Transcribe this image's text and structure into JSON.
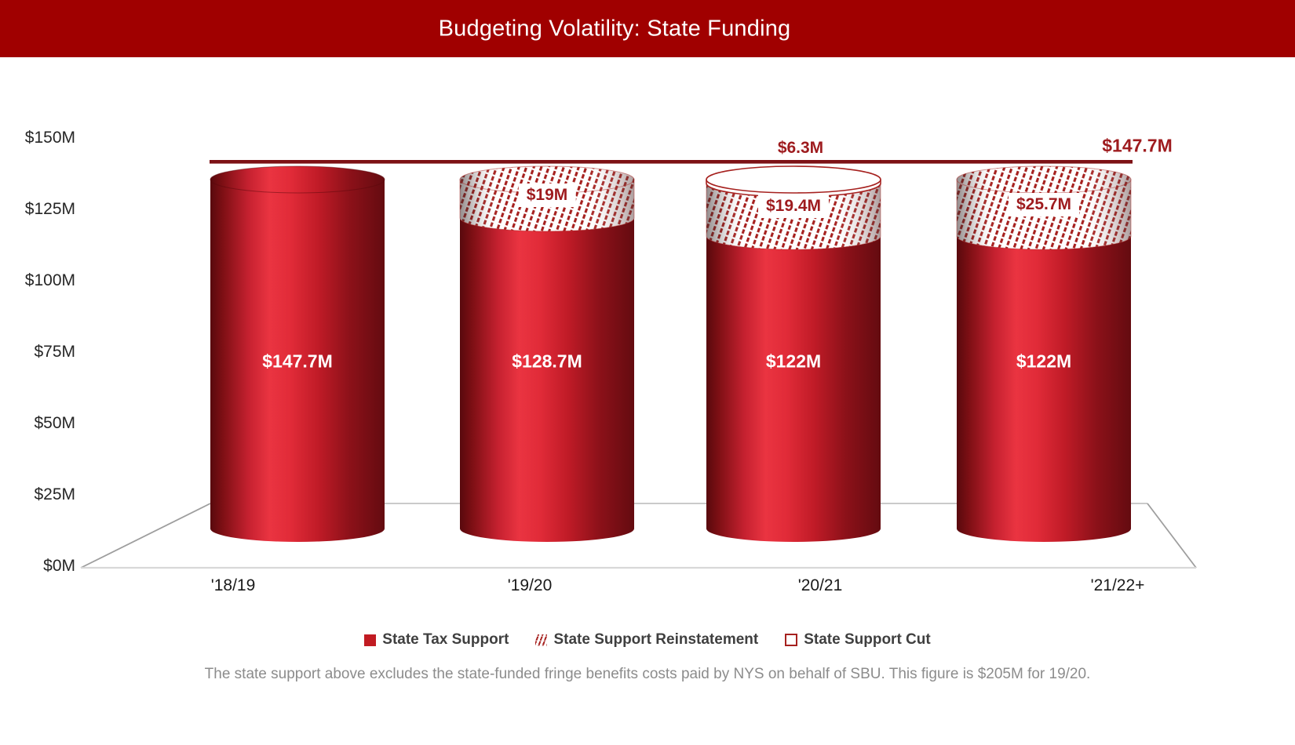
{
  "header": {
    "title": "Budgeting Volatility: State Funding"
  },
  "chart_data": {
    "type": "bar",
    "variant": "3d-cylinder-stacked",
    "title": "Budgeting Volatility: State Funding",
    "categories": [
      "'18/19",
      "'19/20",
      "'20/21",
      "'21/22+"
    ],
    "series": [
      {
        "name": "State Tax Support",
        "style": "solid",
        "values": [
          147.7,
          128.7,
          122,
          122
        ],
        "labels": [
          "$147.7M",
          "$128.7M",
          "$122M",
          "$122M"
        ]
      },
      {
        "name": "State Support Reinstatement",
        "style": "hatch",
        "values": [
          0,
          19,
          19.4,
          25.7
        ],
        "labels": [
          "",
          "$19M",
          "$19.4M",
          "$25.7M"
        ]
      },
      {
        "name": "State Support Cut",
        "style": "outline",
        "values": [
          0,
          0,
          6.3,
          0
        ],
        "labels": [
          "",
          "",
          "$6.3M",
          ""
        ]
      }
    ],
    "reference_line": {
      "value": 147.7,
      "label": "$147.7M"
    },
    "ylim": [
      0,
      150
    ],
    "ytick_interval": 25,
    "yticks": [
      "$150M",
      "$125M",
      "$100M",
      "$75M",
      "$50M",
      "$25M",
      "$0M"
    ],
    "grid": false,
    "legend_position": "bottom"
  },
  "legend": {
    "items": [
      {
        "label": "State Tax Support",
        "style": "solid"
      },
      {
        "label": "State Support Reinstatement",
        "style": "hatch"
      },
      {
        "label": "State Support Cut",
        "style": "outline"
      }
    ]
  },
  "footnote": "The state support above excludes the state-funded fringe benefits costs paid by NYS on behalf of SBU. This figure is $205M for 19/20.",
  "colors": {
    "title_bar": "#A00000",
    "title_text": "#FFFFFF",
    "bar_bright": "#E8333E",
    "bar_dark": "#6E0C11",
    "reference_line": "#7D1115",
    "annotation_text": "#9E1B1E",
    "hatch_stripe": "#A6211F",
    "legend_text": "#3F3F3F",
    "axis_text": "#262626",
    "footnote_text": "#8C8C8C"
  }
}
